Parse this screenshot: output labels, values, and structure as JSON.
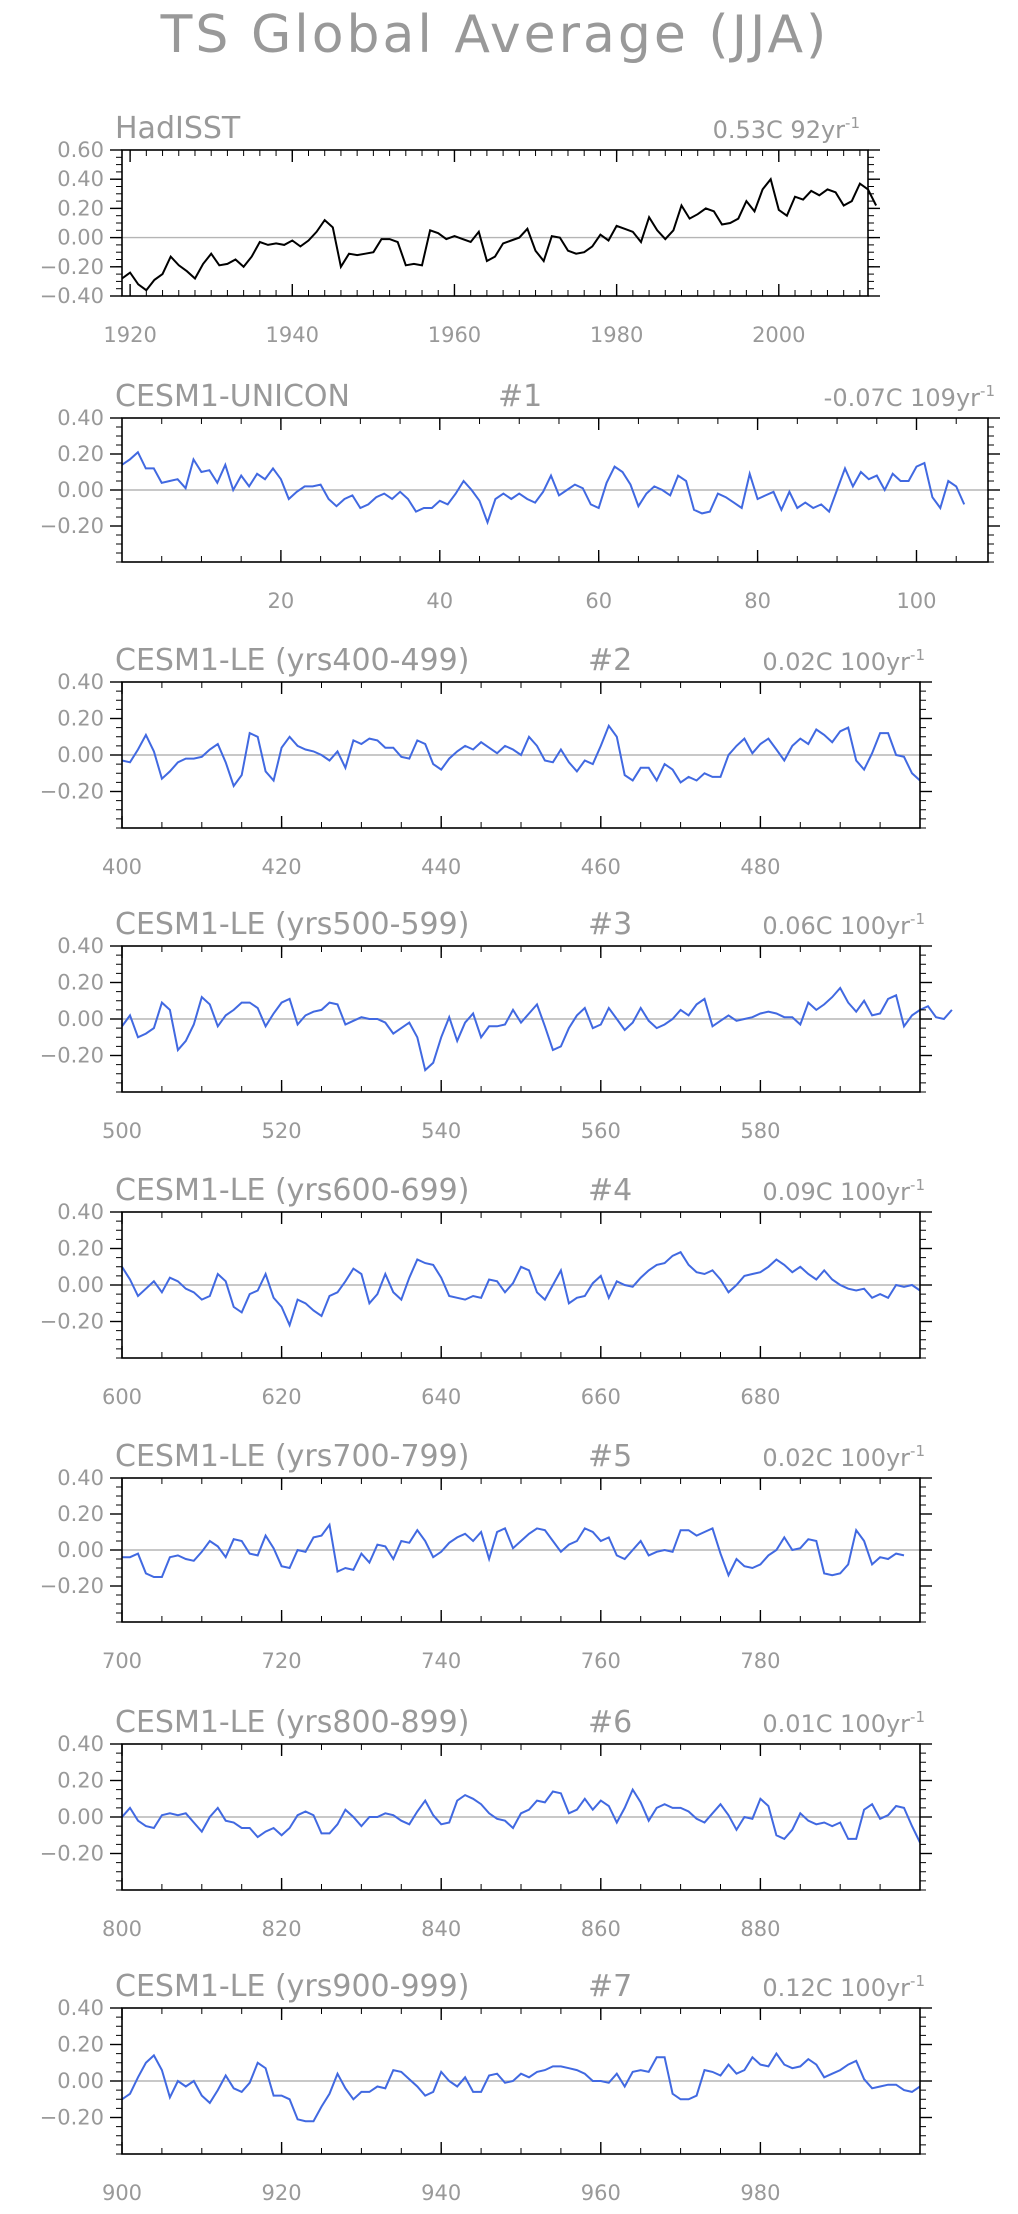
{
  "title": "TS Global Average (JJA)",
  "chart_data": [
    {
      "type": "line",
      "title": "HadISST",
      "trend": "0.53C 92yr",
      "trend_exp": "-1",
      "number": "",
      "color": "#000000",
      "xlim": [
        1919,
        2011
      ],
      "ylim": [
        -0.4,
        0.6
      ],
      "xticks": [
        1920,
        1940,
        1960,
        1980,
        2000
      ],
      "yticks": [
        -0.4,
        -0.2,
        0.0,
        0.2,
        0.4,
        0.6
      ],
      "xstart": 1919,
      "values": [
        -0.28,
        -0.24,
        -0.32,
        -0.36,
        -0.29,
        -0.25,
        -0.13,
        -0.19,
        -0.23,
        -0.28,
        -0.18,
        -0.11,
        -0.19,
        -0.18,
        -0.15,
        -0.2,
        -0.13,
        -0.03,
        -0.05,
        -0.04,
        -0.05,
        -0.02,
        -0.06,
        -0.02,
        0.04,
        0.12,
        0.07,
        -0.2,
        -0.11,
        -0.12,
        -0.11,
        -0.1,
        -0.01,
        -0.01,
        -0.03,
        -0.19,
        -0.18,
        -0.19,
        0.05,
        0.03,
        -0.01,
        0.01,
        -0.01,
        -0.03,
        0.04,
        -0.16,
        -0.13,
        -0.04,
        -0.02,
        0.0,
        0.06,
        -0.09,
        -0.16,
        0.01,
        0.0,
        -0.09,
        -0.11,
        -0.1,
        -0.06,
        0.02,
        -0.02,
        0.08,
        0.06,
        0.04,
        -0.03,
        0.14,
        0.05,
        -0.01,
        0.05,
        0.22,
        0.13,
        0.16,
        0.2,
        0.18,
        0.09,
        0.1,
        0.13,
        0.25,
        0.18,
        0.33,
        0.4,
        0.19,
        0.15,
        0.28,
        0.26,
        0.32,
        0.29,
        0.33,
        0.31,
        0.22,
        0.25,
        0.37,
        0.33,
        0.22
      ]
    },
    {
      "type": "line",
      "title": "CESM1-UNICON",
      "trend": "-0.07C 109yr",
      "trend_exp": "-1",
      "number": "#1",
      "color": "#4169e1",
      "xlim": [
        0,
        109
      ],
      "ylim": [
        -0.4,
        0.4
      ],
      "xticks": [
        20,
        40,
        60,
        80,
        100
      ],
      "yticks": [
        -0.2,
        0.0,
        0.2,
        0.4
      ],
      "xstart": 0,
      "values": [
        0.14,
        0.17,
        0.21,
        0.12,
        0.12,
        0.04,
        0.05,
        0.06,
        0.01,
        0.17,
        0.1,
        0.11,
        0.04,
        0.14,
        0.0,
        0.08,
        0.02,
        0.09,
        0.06,
        0.12,
        0.06,
        -0.05,
        -0.01,
        0.02,
        0.02,
        0.03,
        -0.05,
        -0.09,
        -0.05,
        -0.03,
        -0.1,
        -0.08,
        -0.04,
        -0.02,
        -0.05,
        -0.01,
        -0.05,
        -0.12,
        -0.1,
        -0.1,
        -0.06,
        -0.08,
        -0.02,
        0.05,
        0.0,
        -0.06,
        -0.18,
        -0.05,
        -0.02,
        -0.05,
        -0.02,
        -0.05,
        -0.07,
        -0.01,
        0.08,
        -0.03,
        0.0,
        0.03,
        0.01,
        -0.08,
        -0.1,
        0.04,
        0.13,
        0.1,
        0.03,
        -0.09,
        -0.02,
        0.02,
        0.0,
        -0.03,
        0.08,
        0.05,
        -0.11,
        -0.13,
        -0.12,
        -0.02,
        -0.04,
        -0.07,
        -0.1,
        0.09,
        -0.05,
        -0.03,
        -0.01,
        -0.11,
        -0.01,
        -0.1,
        -0.07,
        -0.1,
        -0.08,
        -0.12,
        0.0,
        0.12,
        0.02,
        0.1,
        0.06,
        0.08,
        0.0,
        0.09,
        0.05,
        0.05,
        0.13,
        0.15,
        -0.04,
        -0.1,
        0.05,
        0.02,
        -0.08
      ]
    },
    {
      "type": "line",
      "title": "CESM1-LE (yrs400-499)",
      "trend": "0.02C 100yr",
      "trend_exp": "-1",
      "number": "#2",
      "color": "#4169e1",
      "xlim": [
        400,
        500
      ],
      "ylim": [
        -0.4,
        0.4
      ],
      "xticks": [
        400,
        420,
        440,
        460,
        480
      ],
      "yticks": [
        -0.2,
        0.0,
        0.2,
        0.4
      ],
      "xstart": 400,
      "values": [
        -0.03,
        -0.04,
        0.03,
        0.11,
        0.02,
        -0.13,
        -0.09,
        -0.04,
        -0.02,
        -0.02,
        -0.01,
        0.03,
        0.06,
        -0.04,
        -0.17,
        -0.11,
        0.12,
        0.1,
        -0.09,
        -0.14,
        0.04,
        0.1,
        0.05,
        0.03,
        0.02,
        0.0,
        -0.03,
        0.02,
        -0.07,
        0.08,
        0.06,
        0.09,
        0.08,
        0.04,
        0.04,
        -0.01,
        -0.02,
        0.08,
        0.06,
        -0.05,
        -0.08,
        -0.02,
        0.02,
        0.05,
        0.03,
        0.07,
        0.04,
        0.01,
        0.05,
        0.03,
        0.0,
        0.1,
        0.05,
        -0.03,
        -0.04,
        0.03,
        -0.04,
        -0.09,
        -0.03,
        -0.05,
        0.05,
        0.16,
        0.1,
        -0.11,
        -0.14,
        -0.07,
        -0.07,
        -0.14,
        -0.05,
        -0.08,
        -0.15,
        -0.12,
        -0.14,
        -0.1,
        -0.12,
        -0.12,
        0.0,
        0.05,
        0.09,
        0.01,
        0.06,
        0.09,
        0.03,
        -0.03,
        0.05,
        0.09,
        0.06,
        0.14,
        0.11,
        0.07,
        0.13,
        0.15,
        -0.03,
        -0.08,
        0.01,
        0.12,
        0.12,
        0.0,
        -0.01,
        -0.1,
        -0.14
      ]
    },
    {
      "type": "line",
      "title": "CESM1-LE (yrs500-599)",
      "trend": "0.06C 100yr",
      "trend_exp": "-1",
      "number": "#3",
      "color": "#4169e1",
      "xlim": [
        500,
        600
      ],
      "ylim": [
        -0.4,
        0.4
      ],
      "xticks": [
        500,
        520,
        540,
        560,
        580
      ],
      "yticks": [
        -0.2,
        0.0,
        0.2,
        0.4
      ],
      "xstart": 500,
      "values": [
        -0.04,
        0.02,
        -0.1,
        -0.08,
        -0.05,
        0.09,
        0.05,
        -0.17,
        -0.12,
        -0.03,
        0.12,
        0.08,
        -0.04,
        0.02,
        0.05,
        0.09,
        0.09,
        0.06,
        -0.04,
        0.03,
        0.09,
        0.11,
        -0.03,
        0.02,
        0.04,
        0.05,
        0.09,
        0.08,
        -0.03,
        -0.01,
        0.01,
        0.0,
        0.0,
        -0.02,
        -0.08,
        -0.05,
        -0.02,
        -0.1,
        -0.28,
        -0.24,
        -0.1,
        0.01,
        -0.12,
        -0.02,
        0.03,
        -0.1,
        -0.04,
        -0.04,
        -0.03,
        0.05,
        -0.02,
        0.03,
        0.08,
        -0.04,
        -0.17,
        -0.15,
        -0.05,
        0.02,
        0.06,
        -0.05,
        -0.03,
        0.06,
        0.0,
        -0.06,
        -0.02,
        0.06,
        -0.01,
        -0.05,
        -0.03,
        0.0,
        0.05,
        0.02,
        0.08,
        0.11,
        -0.04,
        -0.01,
        0.02,
        -0.01,
        0.0,
        0.01,
        0.03,
        0.04,
        0.03,
        0.01,
        0.01,
        -0.03,
        0.09,
        0.05,
        0.08,
        0.12,
        0.17,
        0.09,
        0.04,
        0.1,
        0.02,
        0.03,
        0.11,
        0.13,
        -0.04,
        0.02,
        0.05,
        0.07,
        0.01,
        0.0,
        0.05
      ]
    },
    {
      "type": "line",
      "title": "CESM1-LE (yrs600-699)",
      "trend": "0.09C 100yr",
      "trend_exp": "-1",
      "number": "#4",
      "color": "#4169e1",
      "xlim": [
        600,
        700
      ],
      "ylim": [
        -0.4,
        0.4
      ],
      "xticks": [
        600,
        620,
        640,
        660,
        680
      ],
      "yticks": [
        -0.2,
        0.0,
        0.2,
        0.4
      ],
      "xstart": 600,
      "values": [
        0.1,
        0.03,
        -0.06,
        -0.02,
        0.02,
        -0.04,
        0.04,
        0.02,
        -0.02,
        -0.04,
        -0.08,
        -0.06,
        0.06,
        0.02,
        -0.12,
        -0.15,
        -0.05,
        -0.03,
        0.06,
        -0.07,
        -0.12,
        -0.22,
        -0.08,
        -0.1,
        -0.14,
        -0.17,
        -0.06,
        -0.04,
        0.02,
        0.09,
        0.06,
        -0.1,
        -0.05,
        0.06,
        -0.04,
        -0.08,
        0.04,
        0.14,
        0.12,
        0.11,
        0.04,
        -0.06,
        -0.07,
        -0.08,
        -0.06,
        -0.07,
        0.03,
        0.02,
        -0.04,
        0.01,
        0.1,
        0.08,
        -0.04,
        -0.08,
        0.0,
        0.08,
        -0.1,
        -0.07,
        -0.06,
        0.01,
        0.05,
        -0.07,
        0.02,
        0.0,
        -0.01,
        0.04,
        0.08,
        0.11,
        0.12,
        0.16,
        0.18,
        0.11,
        0.07,
        0.06,
        0.08,
        0.03,
        -0.04,
        0.0,
        0.05,
        0.06,
        0.07,
        0.1,
        0.14,
        0.11,
        0.07,
        0.1,
        0.06,
        0.03,
        0.08,
        0.03,
        0.0,
        -0.02,
        -0.03,
        -0.02,
        -0.07,
        -0.05,
        -0.07,
        0.0,
        -0.01,
        0.0,
        -0.03
      ]
    },
    {
      "type": "line",
      "title": "CESM1-LE (yrs700-799)",
      "trend": "0.02C 100yr",
      "trend_exp": "-1",
      "number": "#5",
      "color": "#4169e1",
      "xlim": [
        700,
        800
      ],
      "ylim": [
        -0.4,
        0.4
      ],
      "xticks": [
        700,
        720,
        740,
        760,
        780
      ],
      "yticks": [
        -0.2,
        0.0,
        0.2,
        0.4
      ],
      "xstart": 700,
      "values": [
        -0.04,
        -0.04,
        -0.02,
        -0.13,
        -0.15,
        -0.15,
        -0.04,
        -0.03,
        -0.05,
        -0.06,
        -0.01,
        0.05,
        0.02,
        -0.04,
        0.06,
        0.05,
        -0.02,
        -0.03,
        0.08,
        0.01,
        -0.09,
        -0.1,
        0.0,
        -0.01,
        0.07,
        0.08,
        0.14,
        -0.12,
        -0.1,
        -0.11,
        -0.02,
        -0.07,
        0.03,
        0.02,
        -0.05,
        0.05,
        0.04,
        0.11,
        0.05,
        -0.04,
        -0.01,
        0.04,
        0.07,
        0.09,
        0.05,
        0.1,
        -0.05,
        0.1,
        0.12,
        0.01,
        0.05,
        0.09,
        0.12,
        0.11,
        0.05,
        -0.01,
        0.03,
        0.05,
        0.12,
        0.1,
        0.05,
        0.07,
        -0.03,
        -0.05,
        0.0,
        0.05,
        -0.03,
        -0.01,
        0.0,
        -0.01,
        0.11,
        0.11,
        0.08,
        0.1,
        0.12,
        -0.02,
        -0.14,
        -0.05,
        -0.09,
        -0.1,
        -0.08,
        -0.03,
        0.0,
        0.07,
        0.0,
        0.01,
        0.06,
        0.05,
        -0.13,
        -0.14,
        -0.13,
        -0.08,
        0.11,
        0.05,
        -0.08,
        -0.04,
        -0.05,
        -0.02,
        -0.03
      ]
    },
    {
      "type": "line",
      "title": "CESM1-LE (yrs800-899)",
      "trend": "0.01C 100yr",
      "trend_exp": "-1",
      "number": "#6",
      "color": "#4169e1",
      "xlim": [
        800,
        900
      ],
      "ylim": [
        -0.4,
        0.4
      ],
      "xticks": [
        800,
        820,
        840,
        860,
        880
      ],
      "yticks": [
        -0.2,
        0.0,
        0.2,
        0.4
      ],
      "xstart": 800,
      "values": [
        0.0,
        0.05,
        -0.02,
        -0.05,
        -0.06,
        0.01,
        0.02,
        0.01,
        0.02,
        -0.03,
        -0.08,
        0.0,
        0.05,
        -0.02,
        -0.03,
        -0.06,
        -0.06,
        -0.11,
        -0.08,
        -0.06,
        -0.1,
        -0.06,
        0.01,
        0.03,
        0.01,
        -0.09,
        -0.09,
        -0.04,
        0.04,
        0.0,
        -0.05,
        0.0,
        0.0,
        0.02,
        0.01,
        -0.02,
        -0.04,
        0.03,
        0.09,
        0.01,
        -0.04,
        -0.03,
        0.09,
        0.12,
        0.1,
        0.07,
        0.02,
        -0.01,
        -0.02,
        -0.06,
        0.02,
        0.04,
        0.09,
        0.08,
        0.14,
        0.13,
        0.02,
        0.04,
        0.1,
        0.04,
        0.09,
        0.06,
        -0.03,
        0.05,
        0.15,
        0.08,
        -0.02,
        0.05,
        0.07,
        0.05,
        0.05,
        0.03,
        -0.01,
        -0.03,
        0.02,
        0.07,
        0.01,
        -0.07,
        0.0,
        -0.01,
        0.1,
        0.06,
        -0.1,
        -0.12,
        -0.07,
        0.02,
        -0.02,
        -0.04,
        -0.03,
        -0.05,
        -0.03,
        -0.12,
        -0.12,
        0.04,
        0.07,
        -0.01,
        0.01,
        0.06,
        0.05,
        -0.05,
        -0.14
      ]
    },
    {
      "type": "line",
      "title": "CESM1-LE (yrs900-999)",
      "trend": "0.12C 100yr",
      "trend_exp": "-1",
      "number": "#7",
      "color": "#4169e1",
      "xlim": [
        900,
        1000
      ],
      "ylim": [
        -0.4,
        0.4
      ],
      "xticks": [
        900,
        920,
        940,
        960,
        980
      ],
      "yticks": [
        -0.2,
        0.0,
        0.2,
        0.4
      ],
      "xstart": 900,
      "values": [
        -0.1,
        -0.07,
        0.02,
        0.1,
        0.14,
        0.06,
        -0.09,
        0.0,
        -0.03,
        0.0,
        -0.08,
        -0.12,
        -0.05,
        0.03,
        -0.04,
        -0.06,
        -0.01,
        0.1,
        0.07,
        -0.08,
        -0.08,
        -0.1,
        -0.21,
        -0.22,
        -0.22,
        -0.14,
        -0.07,
        0.04,
        -0.04,
        -0.1,
        -0.06,
        -0.06,
        -0.03,
        -0.04,
        0.06,
        0.05,
        0.01,
        -0.03,
        -0.08,
        -0.06,
        0.05,
        0.0,
        -0.03,
        0.02,
        -0.06,
        -0.06,
        0.03,
        0.04,
        -0.01,
        0.0,
        0.04,
        0.02,
        0.05,
        0.06,
        0.08,
        0.08,
        0.07,
        0.06,
        0.04,
        0.0,
        0.0,
        -0.01,
        0.04,
        -0.03,
        0.05,
        0.06,
        0.05,
        0.13,
        0.13,
        -0.07,
        -0.1,
        -0.1,
        -0.08,
        0.06,
        0.05,
        0.03,
        0.09,
        0.04,
        0.06,
        0.13,
        0.09,
        0.08,
        0.15,
        0.09,
        0.07,
        0.08,
        0.12,
        0.09,
        0.02,
        0.04,
        0.06,
        0.09,
        0.11,
        0.01,
        -0.04,
        -0.03,
        -0.02,
        -0.02,
        -0.05,
        -0.06,
        -0.03
      ]
    }
  ]
}
